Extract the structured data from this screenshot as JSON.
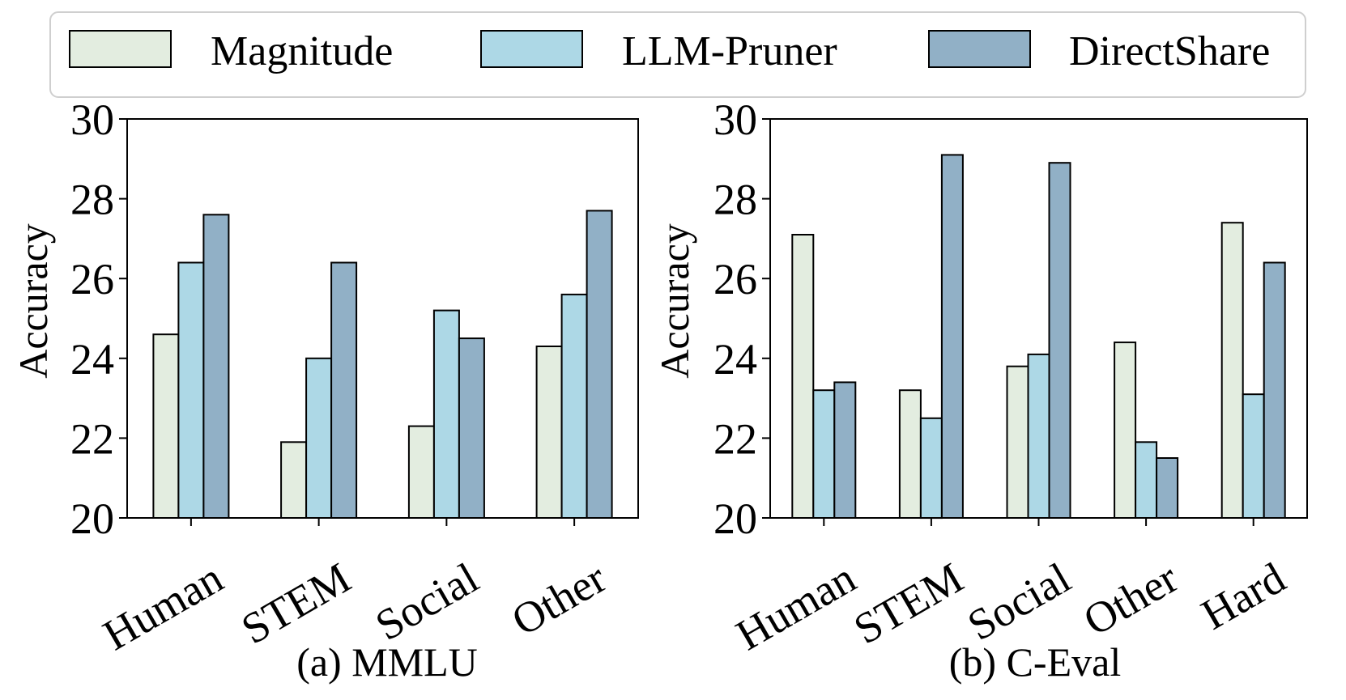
{
  "legend": {
    "placement": "top-center",
    "entries": [
      {
        "name": "Magnitude",
        "color": "#e3ede0"
      },
      {
        "name": "LLM-Pruner",
        "color": "#add8e6"
      },
      {
        "name": "DirectShare",
        "color": "#91b0c6"
      }
    ]
  },
  "chart_data": [
    {
      "type": "bar",
      "title": "(a) MMLU",
      "xlabel": "",
      "ylabel": "Accuracy",
      "ylim": [
        20,
        30
      ],
      "yticks": [
        "20",
        "22",
        "24",
        "26",
        "28",
        "30"
      ],
      "grid": false,
      "categories": [
        "Human",
        "STEM",
        "Social",
        "Other"
      ],
      "series": [
        {
          "name": "Magnitude",
          "color": "#e3ede0",
          "values": [
            24.6,
            21.9,
            22.3,
            24.3
          ]
        },
        {
          "name": "LLM-Pruner",
          "color": "#add8e6",
          "values": [
            26.4,
            24.0,
            25.2,
            25.6
          ]
        },
        {
          "name": "DirectShare",
          "color": "#91b0c6",
          "values": [
            27.6,
            26.4,
            24.5,
            27.7
          ]
        }
      ]
    },
    {
      "type": "bar",
      "title": "(b) C-Eval",
      "xlabel": "",
      "ylabel": "Accuracy",
      "ylim": [
        20,
        30
      ],
      "yticks": [
        "20",
        "22",
        "24",
        "26",
        "28",
        "30"
      ],
      "grid": false,
      "categories": [
        "Human",
        "STEM",
        "Social",
        "Other",
        "Hard"
      ],
      "series": [
        {
          "name": "Magnitude",
          "color": "#e3ede0",
          "values": [
            27.1,
            23.2,
            23.8,
            24.4,
            27.4
          ]
        },
        {
          "name": "LLM-Pruner",
          "color": "#add8e6",
          "values": [
            23.2,
            22.5,
            24.1,
            21.9,
            23.1
          ]
        },
        {
          "name": "DirectShare",
          "color": "#91b0c6",
          "values": [
            23.4,
            29.1,
            28.9,
            21.5,
            26.4
          ]
        }
      ]
    }
  ]
}
